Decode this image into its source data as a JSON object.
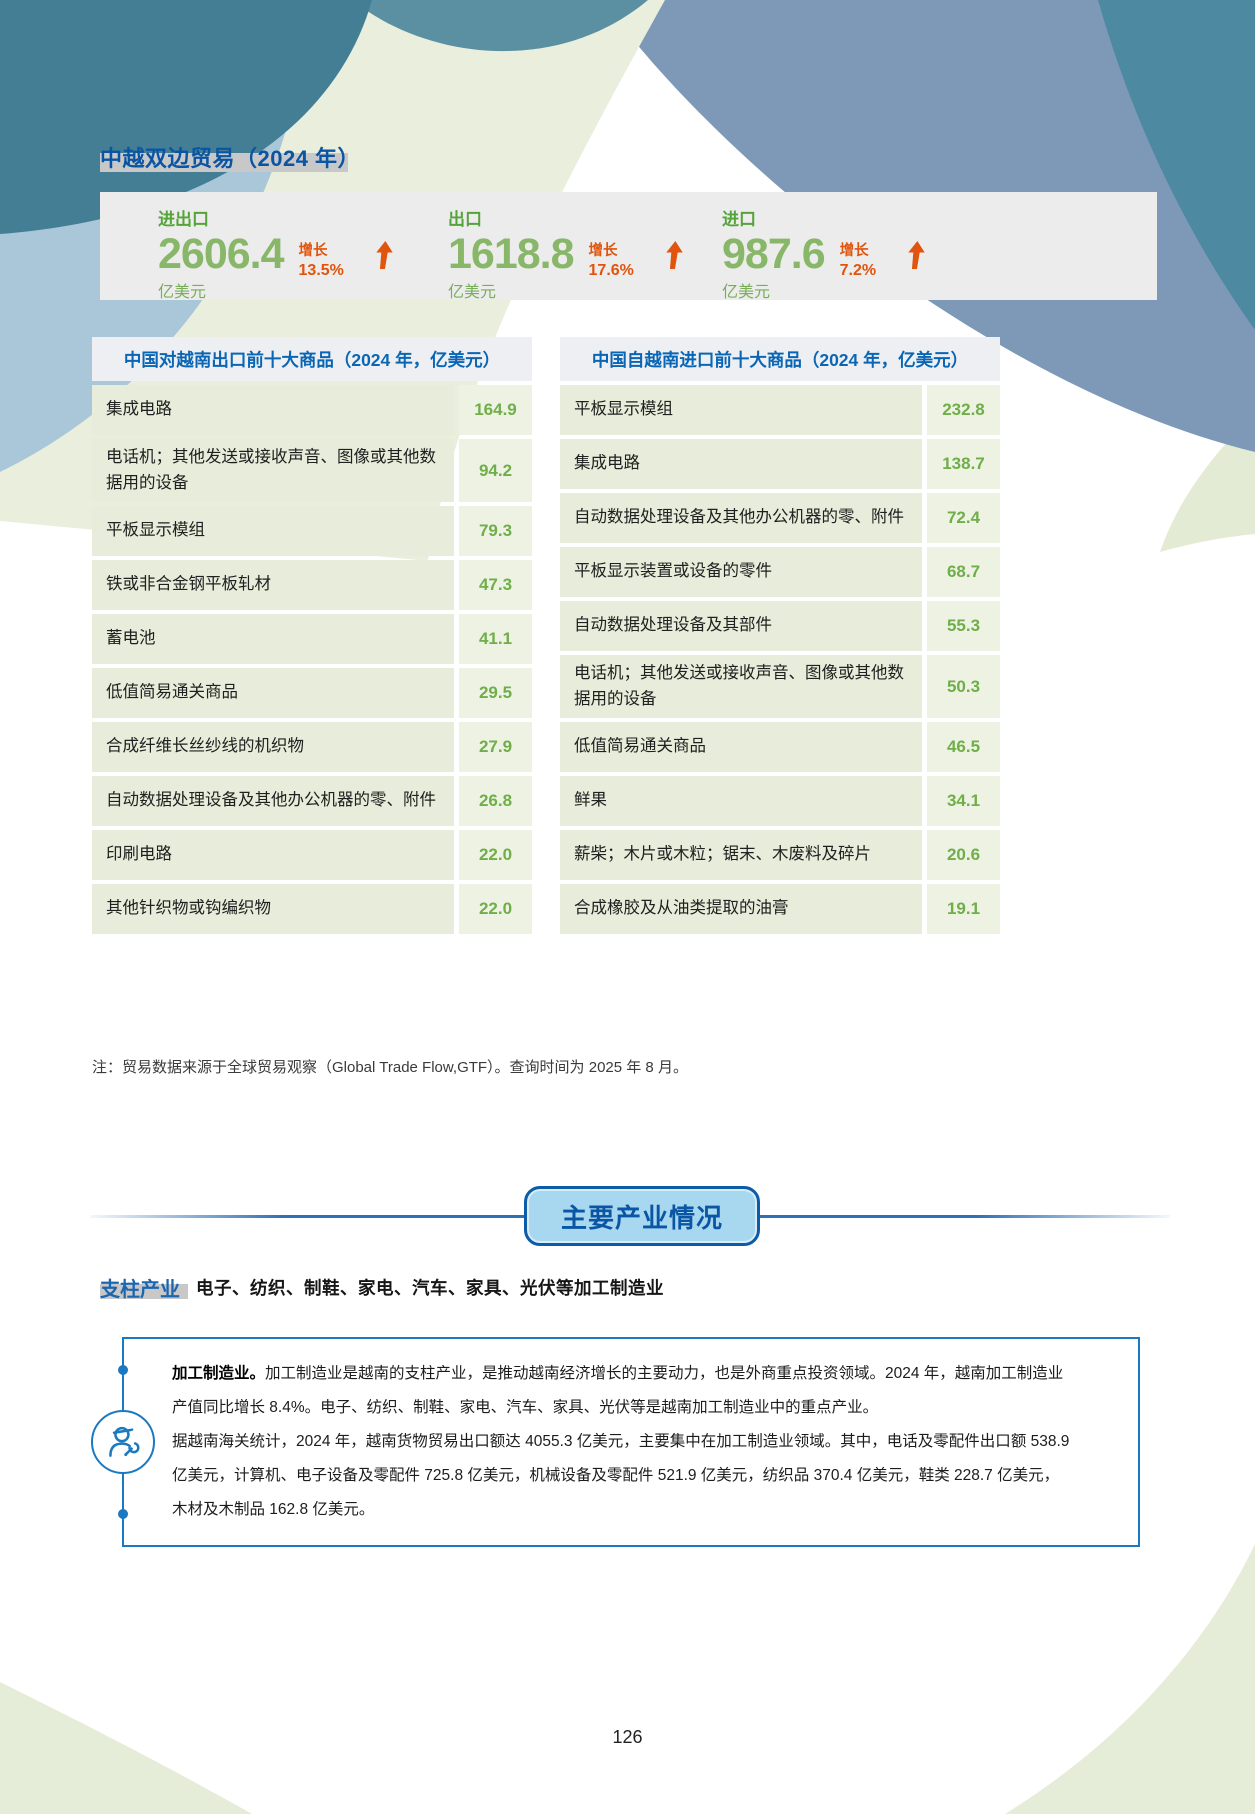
{
  "title": "中越双边贸易（2024 年）",
  "stats": {
    "items": [
      {
        "label": "进出口",
        "value": "2606.4",
        "unit": "亿美元",
        "growth_label": "增长",
        "growth": "13.5%"
      },
      {
        "label": "出口",
        "value": "1618.8",
        "unit": "亿美元",
        "growth_label": "增长",
        "growth": "17.6%"
      },
      {
        "label": "进口",
        "value": "987.6",
        "unit": "亿美元",
        "growth_label": "增长",
        "growth": "7.2%"
      }
    ]
  },
  "tables": [
    {
      "title": "中国对越南出口前十大商品（2024 年，亿美元）",
      "rows": [
        {
          "name": "集成电路",
          "value": "164.9"
        },
        {
          "name": "电话机；其他发送或接收声音、图像或其他数据用的设备",
          "value": "94.2"
        },
        {
          "name": "平板显示模组",
          "value": "79.3"
        },
        {
          "name": "铁或非合金钢平板轧材",
          "value": "47.3"
        },
        {
          "name": "蓄电池",
          "value": "41.1"
        },
        {
          "name": "低值简易通关商品",
          "value": "29.5"
        },
        {
          "name": "合成纤维长丝纱线的机织物",
          "value": "27.9"
        },
        {
          "name": "自动数据处理设备及其他办公机器的零、附件",
          "value": "26.8"
        },
        {
          "name": "印刷电路",
          "value": "22.0"
        },
        {
          "name": "其他针织物或钩编织物",
          "value": "22.0"
        }
      ]
    },
    {
      "title": "中国自越南进口前十大商品（2024 年，亿美元）",
      "rows": [
        {
          "name": "平板显示模组",
          "value": "232.8"
        },
        {
          "name": "集成电路",
          "value": "138.7"
        },
        {
          "name": "自动数据处理设备及其他办公机器的零、附件",
          "value": "72.4"
        },
        {
          "name": "平板显示装置或设备的零件",
          "value": "68.7"
        },
        {
          "name": "自动数据处理设备及其部件",
          "value": "55.3"
        },
        {
          "name": "电话机；其他发送或接收声音、图像或其他数据用的设备",
          "value": "50.3"
        },
        {
          "name": "低值简易通关商品",
          "value": "46.5"
        },
        {
          "name": "鲜果",
          "value": "34.1"
        },
        {
          "name": "薪柴；木片或木粒；锯末、木废料及碎片",
          "value": "20.6"
        },
        {
          "name": "合成橡胶及从油类提取的油膏",
          "value": "19.1"
        }
      ]
    }
  ],
  "note": "注：贸易数据来源于全球贸易观察（Global Trade Flow,GTF）。查询时间为 2025 年 8 月。",
  "section": {
    "title": "主要产业情况"
  },
  "pillar": {
    "label": "支柱产业",
    "text": "电子、纺织、制鞋、家电、汽车、家具、光伏等加工制造业"
  },
  "industry_box": {
    "lead": "加工制造业。",
    "p1_rest": "加工制造业是越南的支柱产业，是推动越南经济增长的主要动力，也是外商重点投资领域。2024 年，越南加工制造业\n产值同比增长 8.4%。电子、纺织、制鞋、家电、汽车、家具、光伏等是越南加工制造业中的重点产业。",
    "p2": "据越南海关统计，2024 年，越南货物贸易出口额达 4055.3 亿美元，主要集中在加工制造业领域。其中，电话及零配件出口额 538.9\n亿美元，计算机、电子设备及零配件 725.8 亿美元，机械设备及零配件 521.9 亿美元，纺织品 370.4 亿美元，鞋类 228.7 亿美元，\n木材及木制品 162.8 亿美元。"
  },
  "page_number": "126",
  "colors": {
    "accent_blue": "#0c5ca8",
    "table_green": "#6fae49",
    "stat_green": "#89b76a",
    "orange": "#e0540e",
    "band_green": "#e9eedd",
    "slate_blue": "#7d99b7",
    "dark_teal": "#447e95",
    "light_blue": "#a9c7d9"
  }
}
